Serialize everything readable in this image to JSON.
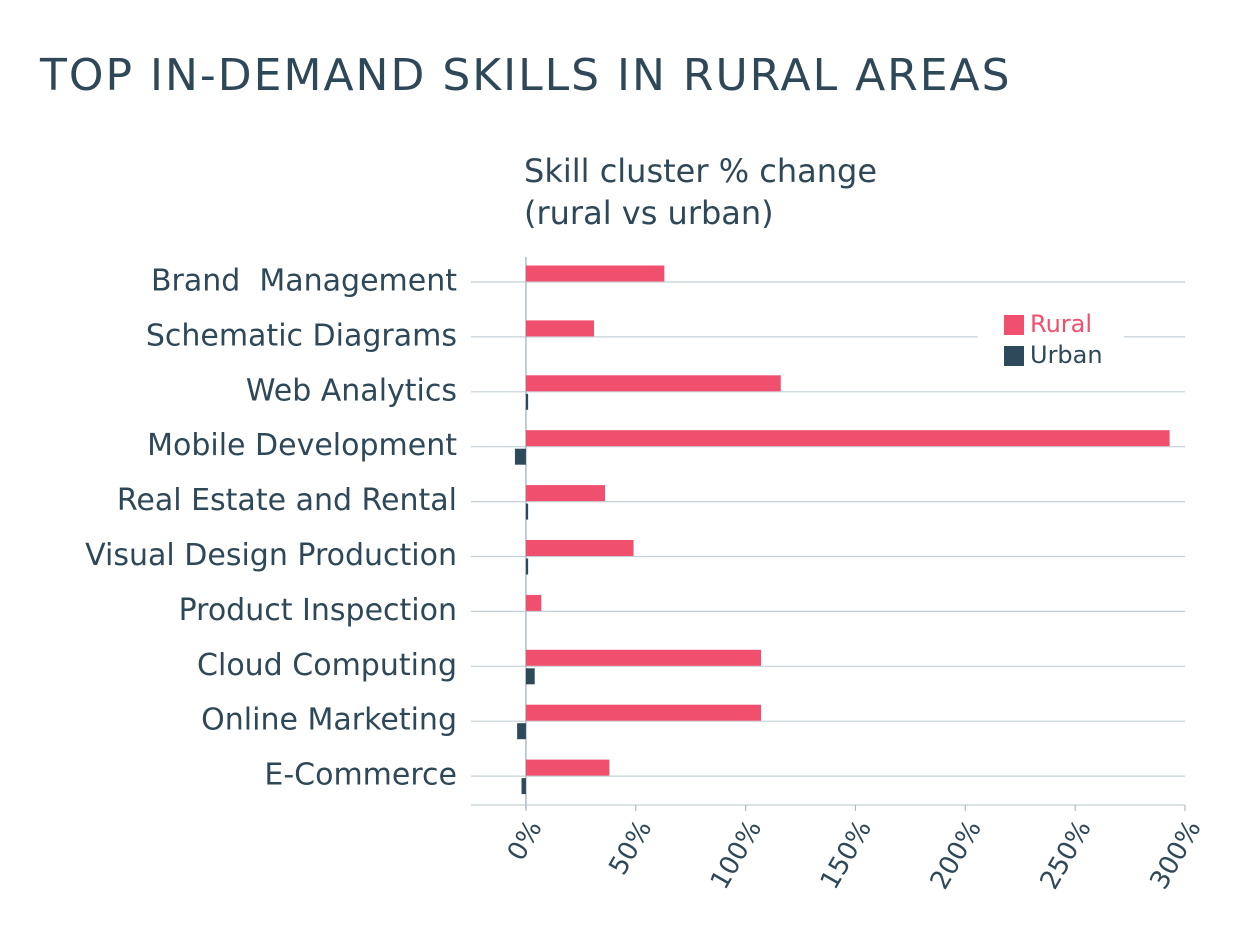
{
  "chart_data": {
    "type": "bar",
    "orientation": "horizontal",
    "title": "TOP IN-DEMAND SKILLS IN RURAL AREAS",
    "subtitle": "Skill cluster % change (rural vs urban)",
    "categories": [
      "Brand  Management",
      "Schematic Diagrams",
      "Web Analytics",
      "Mobile Development",
      "Real Estate and Rental",
      "Visual Design Production",
      "Product Inspection",
      "Cloud Computing",
      "Online Marketing",
      "E-Commerce"
    ],
    "series": [
      {
        "name": "Rural",
        "color": "#f0506e",
        "values": [
          63,
          31,
          116,
          293,
          36,
          49,
          7,
          107,
          107,
          38
        ]
      },
      {
        "name": "Urban",
        "color": "#2e4a5a",
        "values": [
          0,
          0,
          1,
          -5,
          1,
          1,
          0,
          4,
          -4,
          -2
        ]
      }
    ],
    "xlim": [
      -25,
      300
    ],
    "xticks": [
      {
        "value": 0,
        "label": "0%"
      },
      {
        "value": 50,
        "label": "50%"
      },
      {
        "value": 100,
        "label": "100%"
      },
      {
        "value": 150,
        "label": "150%"
      },
      {
        "value": 200,
        "label": "200%"
      },
      {
        "value": 250,
        "label": "250%"
      },
      {
        "value": 300,
        "label": "300%"
      }
    ],
    "grid": true,
    "legend": "upper right"
  }
}
